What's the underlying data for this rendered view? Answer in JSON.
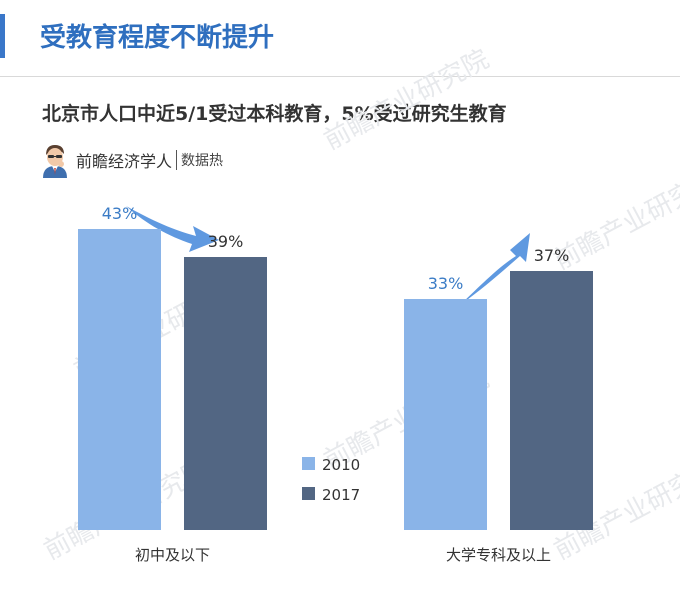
{
  "header": {
    "title": "受教育程度不断提升"
  },
  "subtitle": "北京市人口中近5/1受过本科教育，5%受过研究生教育",
  "source": {
    "brand": "前瞻经济学人",
    "tag": "数据热"
  },
  "watermark": "前瞻产业研究院",
  "colors": {
    "accent": "#3a77c9",
    "title": "#2f6fbf",
    "series_2010": "#8ab4e8",
    "series_2017": "#526683",
    "value_label": "#3b7cc6",
    "arrow": "#5f99e0"
  },
  "chart_data": {
    "type": "bar",
    "categories": [
      "初中及以下",
      "大学专科及以上"
    ],
    "series": [
      {
        "name": "2010",
        "values": [
          43,
          33
        ],
        "labels": [
          "43%",
          "33%"
        ]
      },
      {
        "name": "2017",
        "values": [
          39,
          37
        ],
        "labels": [
          "39%",
          "37%"
        ]
      }
    ],
    "ylim": [
      0,
      50
    ],
    "legend_position": "bottom-center",
    "grid": false,
    "annotations": [
      "arrow-down-right",
      "arrow-up-right"
    ]
  }
}
